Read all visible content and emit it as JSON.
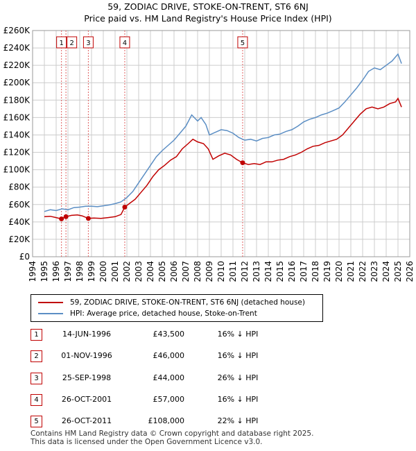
{
  "title": "59, ZODIAC DRIVE, STOKE-ON-TRENT, ST6 6NJ",
  "subtitle": "Price paid vs. HM Land Registry's House Price Index (HPI)",
  "colors": {
    "property": "#c00000",
    "hpi": "#5b8ec4",
    "grid": "#cccccc",
    "vline": "#e06060"
  },
  "legend": {
    "property_label": "59, ZODIAC DRIVE, STOKE-ON-TRENT, ST6 6NJ (detached house)",
    "hpi_label": "HPI: Average price, detached house, Stoke-on-Trent"
  },
  "chart_data": {
    "type": "line",
    "title": "Price paid vs. HM Land Registry's House Price Index (HPI)",
    "xlim": [
      1994,
      2026
    ],
    "ylim": [
      0,
      260000
    ],
    "y_ticks": [
      {
        "v": 0,
        "label": "£0"
      },
      {
        "v": 20000,
        "label": "£20K"
      },
      {
        "v": 40000,
        "label": "£40K"
      },
      {
        "v": 60000,
        "label": "£60K"
      },
      {
        "v": 80000,
        "label": "£80K"
      },
      {
        "v": 100000,
        "label": "£100K"
      },
      {
        "v": 120000,
        "label": "£120K"
      },
      {
        "v": 140000,
        "label": "£140K"
      },
      {
        "v": 160000,
        "label": "£160K"
      },
      {
        "v": 180000,
        "label": "£180K"
      },
      {
        "v": 200000,
        "label": "£200K"
      },
      {
        "v": 220000,
        "label": "£220K"
      },
      {
        "v": 240000,
        "label": "£240K"
      },
      {
        "v": 260000,
        "label": "£260K"
      }
    ],
    "x_ticks": [
      "1994",
      "1995",
      "1996",
      "1997",
      "1998",
      "1999",
      "2000",
      "2001",
      "2002",
      "2003",
      "2004",
      "2005",
      "2006",
      "2007",
      "2008",
      "2009",
      "2010",
      "2011",
      "2012",
      "2013",
      "2014",
      "2015",
      "2016",
      "2017",
      "2018",
      "2019",
      "2020",
      "2021",
      "2022",
      "2023",
      "2024",
      "2025",
      "2026"
    ],
    "series": [
      {
        "name": "HPI: Average price, detached house, Stoke-on-Trent",
        "color": "#5b8ec4",
        "points": [
          [
            1995.0,
            52000
          ],
          [
            1995.5,
            54000
          ],
          [
            1996.0,
            53000
          ],
          [
            1996.5,
            55000
          ],
          [
            1997.0,
            54000
          ],
          [
            1997.5,
            56500
          ],
          [
            1998.0,
            57000
          ],
          [
            1998.5,
            58000
          ],
          [
            1999.0,
            58000
          ],
          [
            1999.5,
            57500
          ],
          [
            2000.0,
            58500
          ],
          [
            2000.5,
            59500
          ],
          [
            2001.0,
            61000
          ],
          [
            2001.5,
            63000
          ],
          [
            2002.0,
            68000
          ],
          [
            2002.5,
            75000
          ],
          [
            2003.0,
            85000
          ],
          [
            2003.5,
            95000
          ],
          [
            2004.0,
            105000
          ],
          [
            2004.5,
            115000
          ],
          [
            2005.0,
            122000
          ],
          [
            2005.5,
            128000
          ],
          [
            2006.0,
            134000
          ],
          [
            2006.5,
            142000
          ],
          [
            2007.0,
            150000
          ],
          [
            2007.5,
            163000
          ],
          [
            2008.0,
            156000
          ],
          [
            2008.3,
            160000
          ],
          [
            2008.7,
            152000
          ],
          [
            2009.0,
            140000
          ],
          [
            2009.5,
            143000
          ],
          [
            2010.0,
            146000
          ],
          [
            2010.5,
            145000
          ],
          [
            2011.0,
            142000
          ],
          [
            2011.5,
            137000
          ],
          [
            2012.0,
            134000
          ],
          [
            2012.5,
            135000
          ],
          [
            2013.0,
            133000
          ],
          [
            2013.5,
            136000
          ],
          [
            2014.0,
            137000
          ],
          [
            2014.5,
            140000
          ],
          [
            2015.0,
            141000
          ],
          [
            2015.5,
            144000
          ],
          [
            2016.0,
            146000
          ],
          [
            2016.5,
            150000
          ],
          [
            2017.0,
            155000
          ],
          [
            2017.5,
            158000
          ],
          [
            2018.0,
            160000
          ],
          [
            2018.5,
            163000
          ],
          [
            2019.0,
            165000
          ],
          [
            2019.5,
            168000
          ],
          [
            2020.0,
            171000
          ],
          [
            2020.5,
            178000
          ],
          [
            2021.0,
            186000
          ],
          [
            2021.5,
            194000
          ],
          [
            2022.0,
            203000
          ],
          [
            2022.5,
            213000
          ],
          [
            2023.0,
            217000
          ],
          [
            2023.5,
            215000
          ],
          [
            2024.0,
            220000
          ],
          [
            2024.5,
            225000
          ],
          [
            2025.0,
            233000
          ],
          [
            2025.3,
            222000
          ]
        ]
      },
      {
        "name": "59, ZODIAC DRIVE, STOKE-ON-TRENT, ST6 6NJ (detached house)",
        "color": "#c00000",
        "points": [
          [
            1995.0,
            46000
          ],
          [
            1995.5,
            46500
          ],
          [
            1996.0,
            45000
          ],
          [
            1996.45,
            43500
          ],
          [
            1996.6,
            44500
          ],
          [
            1996.83,
            46000
          ],
          [
            1997.3,
            47500
          ],
          [
            1997.8,
            48000
          ],
          [
            1998.2,
            47000
          ],
          [
            1998.73,
            44000
          ],
          [
            1999.2,
            44500
          ],
          [
            1999.8,
            44000
          ],
          [
            2000.4,
            45000
          ],
          [
            2001.0,
            46000
          ],
          [
            2001.5,
            48500
          ],
          [
            2001.82,
            57000
          ],
          [
            2002.2,
            61000
          ],
          [
            2002.7,
            66000
          ],
          [
            2003.2,
            74000
          ],
          [
            2003.7,
            82000
          ],
          [
            2004.2,
            92000
          ],
          [
            2004.7,
            100000
          ],
          [
            2005.2,
            105000
          ],
          [
            2005.7,
            111000
          ],
          [
            2006.2,
            115000
          ],
          [
            2006.7,
            124000
          ],
          [
            2007.2,
            130000
          ],
          [
            2007.6,
            135000
          ],
          [
            2008.0,
            132000
          ],
          [
            2008.5,
            130000
          ],
          [
            2008.9,
            124000
          ],
          [
            2009.3,
            112000
          ],
          [
            2009.8,
            116000
          ],
          [
            2010.3,
            119000
          ],
          [
            2010.8,
            117000
          ],
          [
            2011.3,
            112000
          ],
          [
            2011.82,
            108000
          ],
          [
            2012.3,
            106000
          ],
          [
            2012.8,
            107000
          ],
          [
            2013.3,
            106000
          ],
          [
            2013.8,
            109000
          ],
          [
            2014.3,
            109000
          ],
          [
            2014.8,
            111000
          ],
          [
            2015.3,
            112000
          ],
          [
            2015.8,
            115000
          ],
          [
            2016.3,
            117000
          ],
          [
            2016.8,
            120000
          ],
          [
            2017.3,
            124000
          ],
          [
            2017.8,
            127000
          ],
          [
            2018.3,
            128000
          ],
          [
            2018.8,
            131000
          ],
          [
            2019.3,
            133000
          ],
          [
            2019.8,
            135000
          ],
          [
            2020.3,
            140000
          ],
          [
            2020.8,
            148000
          ],
          [
            2021.3,
            156000
          ],
          [
            2021.8,
            164000
          ],
          [
            2022.3,
            170000
          ],
          [
            2022.8,
            172000
          ],
          [
            2023.3,
            170000
          ],
          [
            2023.8,
            172000
          ],
          [
            2024.3,
            176000
          ],
          [
            2024.8,
            178000
          ],
          [
            2025.0,
            182000
          ],
          [
            2025.3,
            172000
          ]
        ]
      }
    ],
    "sales": [
      {
        "id": "1",
        "x": 1996.45,
        "price": 43500
      },
      {
        "id": "2",
        "x": 1996.83,
        "price": 46000
      },
      {
        "id": "3",
        "x": 1998.73,
        "price": 44000
      },
      {
        "id": "4",
        "x": 2001.82,
        "price": 57000
      },
      {
        "id": "5",
        "x": 2011.82,
        "price": 108000
      }
    ]
  },
  "table": [
    {
      "num": "1",
      "date": "14-JUN-1996",
      "price": "£43,500",
      "hpi": "16% ↓ HPI"
    },
    {
      "num": "2",
      "date": "01-NOV-1996",
      "price": "£46,000",
      "hpi": "16% ↓ HPI"
    },
    {
      "num": "3",
      "date": "25-SEP-1998",
      "price": "£44,000",
      "hpi": "26% ↓ HPI"
    },
    {
      "num": "4",
      "date": "26-OCT-2001",
      "price": "£57,000",
      "hpi": "16% ↓ HPI"
    },
    {
      "num": "5",
      "date": "26-OCT-2011",
      "price": "£108,000",
      "hpi": "22% ↓ HPI"
    }
  ],
  "footer": {
    "line1": "Contains HM Land Registry data © Crown copyright and database right 2025.",
    "line2": "This data is licensed under the Open Government Licence v3.0."
  }
}
